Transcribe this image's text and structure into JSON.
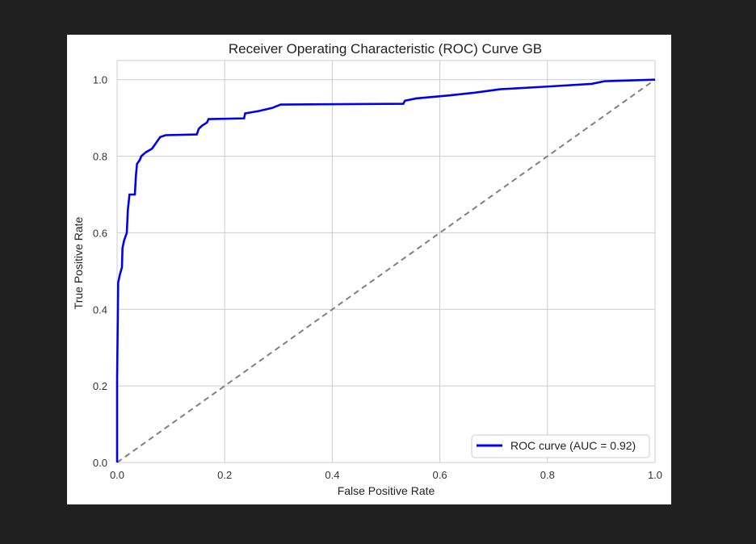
{
  "chart_data": {
    "type": "line",
    "title": "Receiver Operating Characteristic (ROC) Curve GB",
    "xlabel": "False Positive Rate",
    "ylabel": "True Positive Rate",
    "xlim": [
      0.0,
      1.0
    ],
    "ylim": [
      0.0,
      1.05
    ],
    "x_ticks": [
      "0.0",
      "0.2",
      "0.4",
      "0.6",
      "0.8",
      "1.0"
    ],
    "y_ticks": [
      "0.0",
      "0.2",
      "0.4",
      "0.6",
      "0.8",
      "1.0"
    ],
    "grid": true,
    "legend_position": "lower-right",
    "series": [
      {
        "name": "ROC curve (AUC = 0.92)",
        "color": "#0000ee",
        "style": "solid",
        "points": [
          [
            0.0,
            0.0
          ],
          [
            0.0,
            0.22
          ],
          [
            0.002,
            0.47
          ],
          [
            0.005,
            0.49
          ],
          [
            0.009,
            0.51
          ],
          [
            0.01,
            0.56
          ],
          [
            0.013,
            0.58
          ],
          [
            0.018,
            0.6
          ],
          [
            0.02,
            0.66
          ],
          [
            0.023,
            0.7
          ],
          [
            0.033,
            0.7
          ],
          [
            0.035,
            0.75
          ],
          [
            0.037,
            0.78
          ],
          [
            0.042,
            0.79
          ],
          [
            0.045,
            0.8
          ],
          [
            0.053,
            0.81
          ],
          [
            0.065,
            0.82
          ],
          [
            0.07,
            0.83
          ],
          [
            0.075,
            0.84
          ],
          [
            0.08,
            0.85
          ],
          [
            0.09,
            0.855
          ],
          [
            0.148,
            0.857
          ],
          [
            0.152,
            0.872
          ],
          [
            0.158,
            0.88
          ],
          [
            0.167,
            0.888
          ],
          [
            0.17,
            0.897
          ],
          [
            0.236,
            0.899
          ],
          [
            0.238,
            0.912
          ],
          [
            0.263,
            0.918
          ],
          [
            0.288,
            0.926
          ],
          [
            0.304,
            0.935
          ],
          [
            0.532,
            0.937
          ],
          [
            0.535,
            0.945
          ],
          [
            0.556,
            0.951
          ],
          [
            0.618,
            0.959
          ],
          [
            0.665,
            0.966
          ],
          [
            0.712,
            0.975
          ],
          [
            0.8,
            0.982
          ],
          [
            0.882,
            0.989
          ],
          [
            0.906,
            0.996
          ],
          [
            1.0,
            1.0
          ]
        ]
      },
      {
        "name": "",
        "color": "#808080",
        "style": "dashed",
        "points": [
          [
            0.0,
            0.0
          ],
          [
            1.0,
            1.0
          ]
        ]
      }
    ],
    "legend_entries": [
      "ROC curve (AUC = 0.92)"
    ]
  }
}
